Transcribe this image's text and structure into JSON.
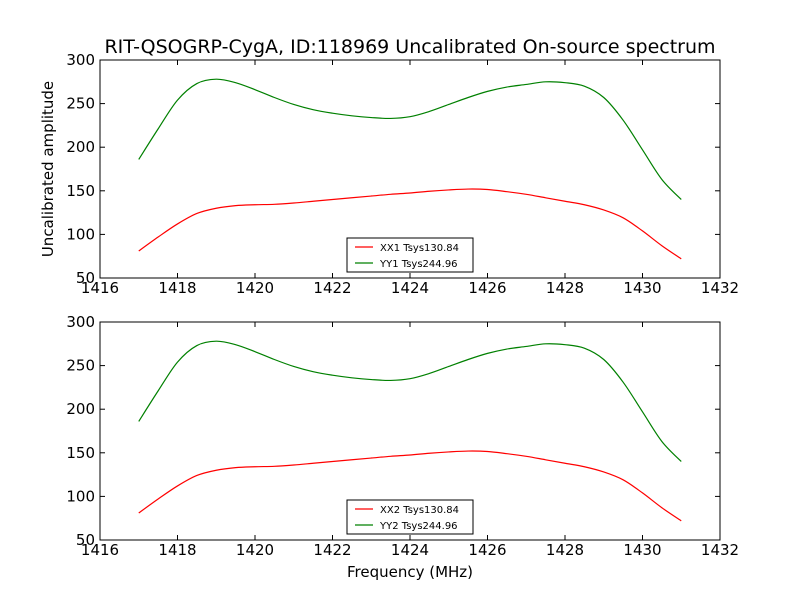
{
  "chart_data": {
    "title": "RIT-QSOGRP-CygA, ID:118969 Uncalibrated On-source spectrum",
    "xlabel": "Frequency (MHz)",
    "ylabel": "Uncalibrated amplitude",
    "type": "line",
    "grid": false,
    "legend_placement": "lower-center",
    "colors": {
      "red": "#ff0000",
      "green": "#008000"
    },
    "panels": [
      {
        "type": "line",
        "xlim": [
          1416,
          1432
        ],
        "ylim": [
          50,
          300
        ],
        "xticks": [
          1416,
          1418,
          1420,
          1422,
          1424,
          1426,
          1428,
          1430,
          1432
        ],
        "yticks": [
          50,
          100,
          150,
          200,
          250,
          300
        ],
        "x": [
          1417.0,
          1417.5,
          1418.0,
          1418.5,
          1419.0,
          1419.5,
          1420.0,
          1420.5,
          1421.0,
          1421.5,
          1422.0,
          1422.5,
          1423.0,
          1423.5,
          1424.0,
          1424.5,
          1425.0,
          1425.5,
          1426.0,
          1426.5,
          1427.0,
          1427.5,
          1428.0,
          1428.5,
          1429.0,
          1429.5,
          1430.0,
          1430.5,
          1431.0
        ],
        "series": [
          {
            "name": "XX1 Tsys130.84",
            "color": "#ff0000",
            "values": [
              81,
              97,
              112,
              124,
              130,
              133,
              134,
              134.5,
              136,
              138,
              140,
              142,
              144,
              146,
              147.5,
              149.5,
              151,
              152,
              151.5,
              149,
              146,
              142,
              138,
              134,
              128,
              119,
              104,
              87,
              72
            ]
          },
          {
            "name": "YY1 Tsys244.96",
            "color": "#008000",
            "values": [
              186,
              221,
              254,
              273,
              278,
              274,
              266,
              257,
              249,
              243,
              239,
              236,
              234,
              233,
              235,
              241,
              249,
              257,
              264,
              269,
              272,
              275,
              274,
              270,
              257,
              231,
              197,
              163,
              140
            ]
          }
        ]
      },
      {
        "type": "line",
        "xlim": [
          1416,
          1432
        ],
        "ylim": [
          50,
          300
        ],
        "xticks": [
          1416,
          1418,
          1420,
          1422,
          1424,
          1426,
          1428,
          1430,
          1432
        ],
        "yticks": [
          50,
          100,
          150,
          200,
          250,
          300
        ],
        "x": [
          1417.0,
          1417.5,
          1418.0,
          1418.5,
          1419.0,
          1419.5,
          1420.0,
          1420.5,
          1421.0,
          1421.5,
          1422.0,
          1422.5,
          1423.0,
          1423.5,
          1424.0,
          1424.5,
          1425.0,
          1425.5,
          1426.0,
          1426.5,
          1427.0,
          1427.5,
          1428.0,
          1428.5,
          1429.0,
          1429.5,
          1430.0,
          1430.5,
          1431.0
        ],
        "series": [
          {
            "name": "XX2 Tsys130.84",
            "color": "#ff0000",
            "values": [
              81,
              97,
              112,
              124,
              130,
              133,
              134,
              134.5,
              136,
              138,
              140,
              142,
              144,
              146,
              147.5,
              149.5,
              151,
              152,
              151.5,
              149,
              146,
              142,
              138,
              134,
              128,
              119,
              104,
              87,
              72
            ]
          },
          {
            "name": "YY2 Tsys244.96",
            "color": "#008000",
            "values": [
              186,
              221,
              254,
              273,
              278,
              274,
              266,
              257,
              249,
              243,
              239,
              236,
              234,
              233,
              235,
              241,
              249,
              257,
              264,
              269,
              272,
              275,
              274,
              270,
              257,
              231,
              197,
              163,
              140
            ]
          }
        ]
      }
    ]
  }
}
